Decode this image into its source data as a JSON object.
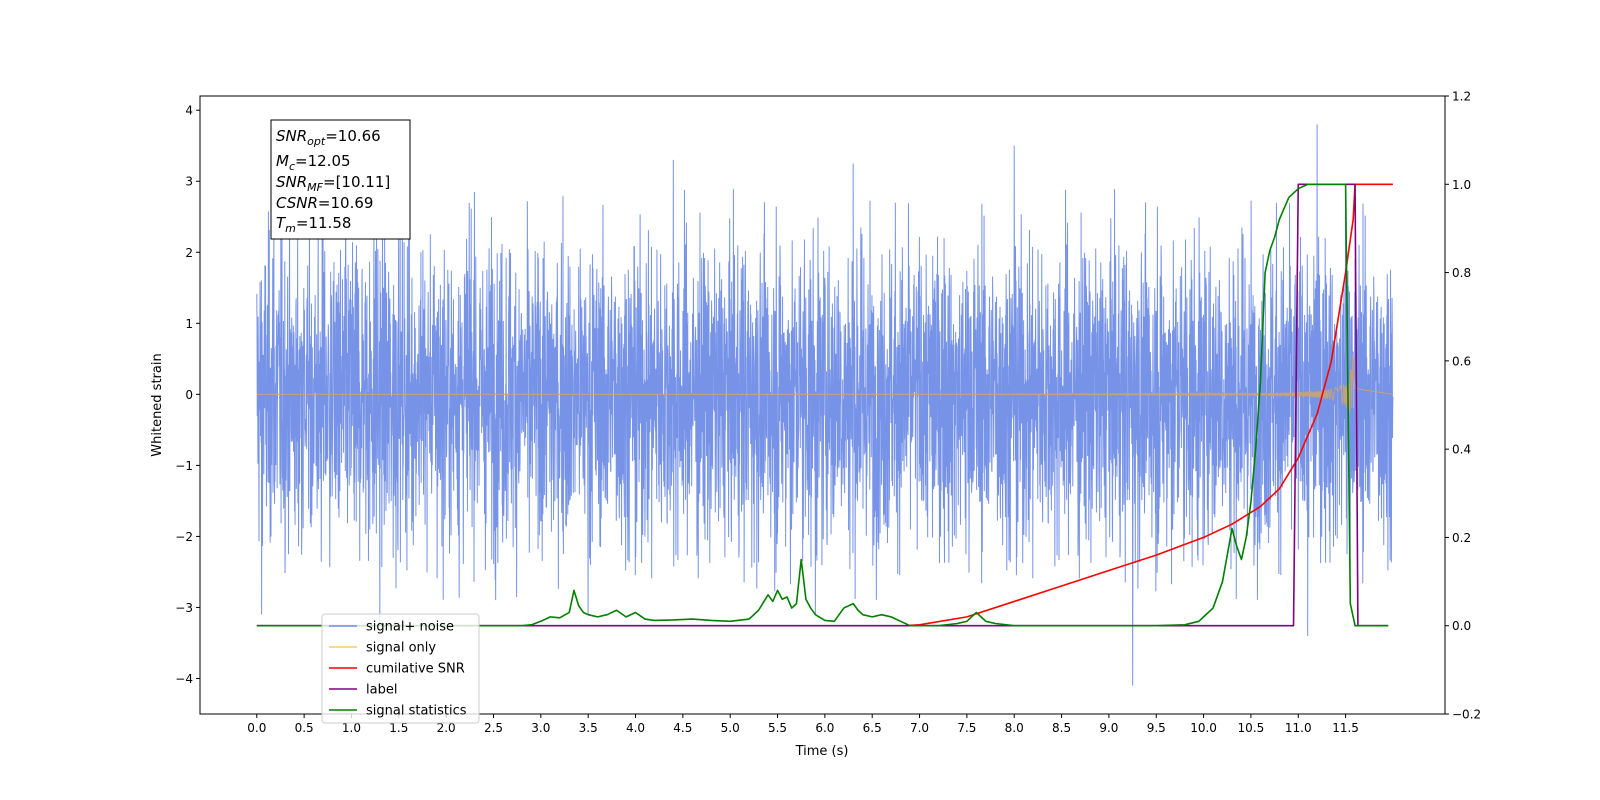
{
  "chart_data": {
    "type": "line",
    "xlabel": "Time (s)",
    "ylabel": "Whitened strain",
    "xlim": [
      -0.6,
      12.55
    ],
    "ylim": [
      -4.5,
      4.2
    ],
    "y2lim": [
      -0.2,
      1.2
    ],
    "x_ticks": [
      "0.0",
      "0.5",
      "1.0",
      "1.5",
      "2.0",
      "2.5",
      "3.0",
      "3.5",
      "4.0",
      "4.5",
      "5.0",
      "5.5",
      "6.0",
      "6.5",
      "7.0",
      "7.5",
      "8.0",
      "8.5",
      "9.0",
      "9.5",
      "10.0",
      "10.5",
      "11.0",
      "11.5"
    ],
    "y_ticks": [
      "4",
      "3",
      "2",
      "1",
      "0",
      "−1",
      "−2",
      "−3",
      "−4"
    ],
    "y2_ticks": [
      "1.2",
      "1.0",
      "0.8",
      "0.6",
      "0.4",
      "0.2",
      "0.0",
      "−0.2"
    ],
    "grid": false,
    "legend_position": "lower-left",
    "annotation": {
      "snr_opt": {
        "sym": "SNR",
        "sub": "opt",
        "val": "=10.66"
      },
      "mc": {
        "sym": "M",
        "sub": "c",
        "val": "=12.05"
      },
      "snr_mf": {
        "sym": "SNR",
        "sub": "MF",
        "val": "=[10.11]"
      },
      "csnr": {
        "sym": "CSNR",
        "sub": "",
        "val": "=10.69"
      },
      "tm": {
        "sym": "T",
        "sub": "m",
        "val": "=11.58"
      }
    },
    "series": [
      {
        "name": "signal+ noise",
        "color": "#6f8de6",
        "axis": "left",
        "t_range": [
          0.0,
          12.0
        ],
        "envelope": 1.25,
        "extreme_spikes": [
          [
            0.18,
            2.65
          ],
          [
            0.7,
            2.9
          ],
          [
            2.3,
            2.85
          ],
          [
            4.4,
            3.3
          ],
          [
            6.3,
            3.25
          ],
          [
            8.0,
            3.5
          ],
          [
            11.2,
            3.8
          ],
          [
            11.5,
            2.8
          ],
          [
            0.05,
            -3.1
          ],
          [
            1.3,
            -3.25
          ],
          [
            3.5,
            -3.1
          ],
          [
            5.9,
            -3.1
          ],
          [
            9.25,
            -4.1
          ],
          [
            11.1,
            -3.4
          ]
        ]
      },
      {
        "name": "signal only",
        "color": "#c8a277",
        "axis": "left",
        "chirp": {
          "t_merge": 11.58,
          "peak_amplitude": 0.62,
          "ringdown_end": 11.6
        }
      },
      {
        "name": "cumilative SNR",
        "color": "#ff0000",
        "axis": "right",
        "t": [
          6.85,
          7.0,
          7.5,
          8.0,
          8.5,
          9.0,
          9.5,
          10.0,
          10.3,
          10.6,
          10.8,
          11.0,
          11.2,
          11.35,
          11.5,
          11.58,
          11.6,
          12.0
        ],
        "values": [
          0.0,
          0.002,
          0.02,
          0.055,
          0.09,
          0.125,
          0.16,
          0.2,
          0.23,
          0.27,
          0.31,
          0.38,
          0.48,
          0.6,
          0.8,
          0.92,
          1.0,
          1.0
        ]
      },
      {
        "name": "label",
        "color": "#800080",
        "axis": "right",
        "t": [
          0.0,
          10.95,
          11.0,
          11.6,
          11.63,
          11.95
        ],
        "values": [
          0.0,
          0.0,
          1.0,
          1.0,
          0.0,
          0.0
        ]
      },
      {
        "name": "signal statistics",
        "color": "#008000",
        "axis": "right",
        "t": [
          0.0,
          2.8,
          2.9,
          3.0,
          3.1,
          3.2,
          3.3,
          3.35,
          3.4,
          3.45,
          3.5,
          3.6,
          3.7,
          3.8,
          3.9,
          4.0,
          4.1,
          4.2,
          4.4,
          4.6,
          4.8,
          5.0,
          5.2,
          5.3,
          5.4,
          5.45,
          5.5,
          5.55,
          5.6,
          5.65,
          5.7,
          5.75,
          5.8,
          5.85,
          5.9,
          6.0,
          6.1,
          6.2,
          6.3,
          6.35,
          6.4,
          6.5,
          6.6,
          6.7,
          6.8,
          6.9,
          7.0,
          7.2,
          7.4,
          7.5,
          7.6,
          7.65,
          7.7,
          7.8,
          8.0,
          9.5,
          9.8,
          9.95,
          10.0,
          10.1,
          10.2,
          10.3,
          10.35,
          10.4,
          10.45,
          10.5,
          10.55,
          10.6,
          10.65,
          10.7,
          10.75,
          10.8,
          10.9,
          11.0,
          11.1,
          11.2,
          11.3,
          11.45,
          11.5,
          11.55,
          11.6,
          11.95
        ],
        "values": [
          0.0,
          0.0,
          0.002,
          0.01,
          0.02,
          0.018,
          0.03,
          0.08,
          0.045,
          0.03,
          0.025,
          0.02,
          0.025,
          0.035,
          0.02,
          0.03,
          0.015,
          0.012,
          0.013,
          0.015,
          0.012,
          0.01,
          0.015,
          0.035,
          0.07,
          0.055,
          0.08,
          0.06,
          0.065,
          0.04,
          0.05,
          0.15,
          0.06,
          0.04,
          0.025,
          0.012,
          0.01,
          0.04,
          0.05,
          0.035,
          0.025,
          0.02,
          0.025,
          0.02,
          0.01,
          0.0,
          0.0,
          0.0,
          0.005,
          0.01,
          0.03,
          0.02,
          0.01,
          0.005,
          0.0,
          0.0,
          0.002,
          0.01,
          0.02,
          0.04,
          0.1,
          0.22,
          0.18,
          0.15,
          0.2,
          0.28,
          0.4,
          0.55,
          0.8,
          0.85,
          0.88,
          0.92,
          0.97,
          0.99,
          1.0,
          1.0,
          1.0,
          1.0,
          1.0,
          0.05,
          0.0,
          0.0
        ]
      }
    ]
  }
}
